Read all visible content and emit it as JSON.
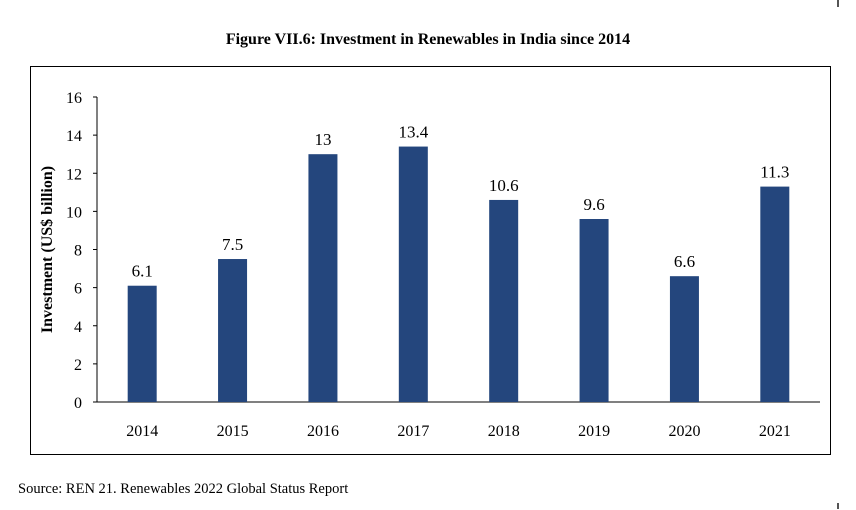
{
  "chart_data": {
    "type": "bar",
    "title": "Figure VII.6: Investment in Renewables in India since 2014",
    "ylabel": "Investment (US$ billion)",
    "xlabel": "",
    "categories": [
      "2014",
      "2015",
      "2016",
      "2017",
      "2018",
      "2019",
      "2020",
      "2021"
    ],
    "values": [
      6.1,
      7.5,
      13,
      13.4,
      10.6,
      9.6,
      6.6,
      11.3
    ],
    "data_labels": [
      "6.1",
      "7.5",
      "13",
      "13.4",
      "10.6",
      "9.6",
      "6.6",
      "11.3"
    ],
    "ylim": [
      0,
      16
    ],
    "yticks": [
      0,
      2,
      4,
      6,
      8,
      10,
      12,
      14,
      16
    ],
    "grid": false,
    "bar_color": "#24467d"
  },
  "source": "Source: REN 21. Renewables 2022 Global Status Report"
}
